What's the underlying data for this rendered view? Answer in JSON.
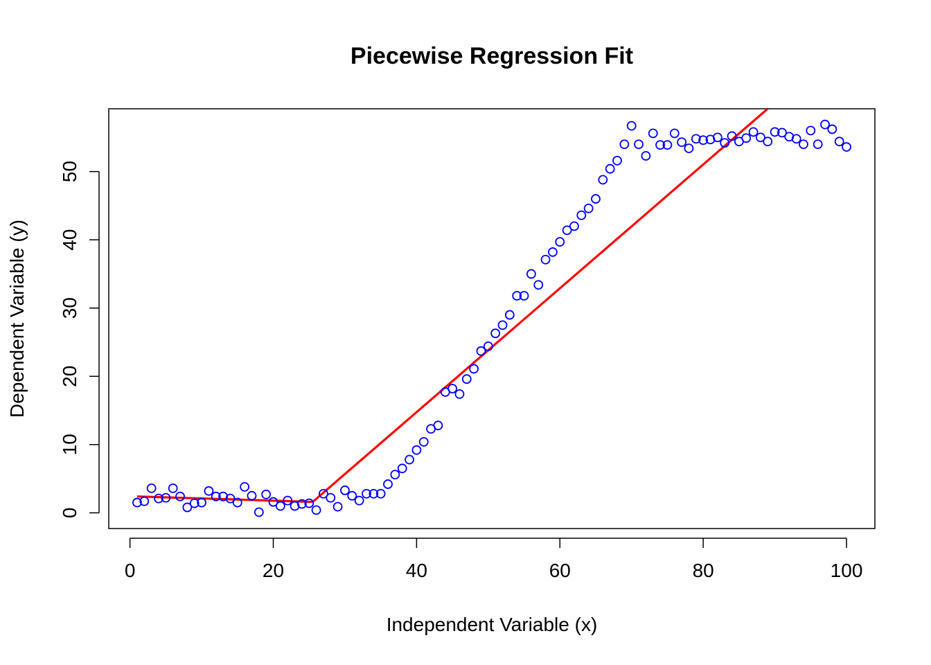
{
  "chart_data": {
    "type": "scatter",
    "title": "Piecewise Regression Fit",
    "xlabel": "Independent Variable (x)",
    "ylabel": "Dependent Variable (y)",
    "xlim": [
      -2.96,
      103.96
    ],
    "ylim": [
      -2.3,
      59.2
    ],
    "xticks": [
      0,
      20,
      40,
      60,
      80,
      100
    ],
    "yticks": [
      0,
      10,
      20,
      30,
      40,
      50
    ],
    "grid": false,
    "legend": "none",
    "colors": {
      "points": "#0000ff",
      "fit": "#ff0000",
      "axes": "#000000"
    },
    "series": [
      {
        "type": "scatter",
        "marker": "open-circle",
        "x": [
          1,
          2,
          3,
          4,
          5,
          6,
          7,
          8,
          9,
          10,
          11,
          12,
          13,
          14,
          15,
          16,
          17,
          18,
          19,
          20,
          21,
          22,
          23,
          24,
          25,
          26,
          27,
          28,
          29,
          30,
          31,
          32,
          33,
          34,
          35,
          36,
          37,
          38,
          39,
          40,
          41,
          42,
          43,
          44,
          45,
          46,
          47,
          48,
          49,
          50,
          51,
          52,
          53,
          54,
          55,
          56,
          57,
          58,
          59,
          60,
          61,
          62,
          63,
          64,
          65,
          66,
          67,
          68,
          69,
          70,
          71,
          72,
          73,
          74,
          75,
          76,
          77,
          78,
          79,
          80,
          81,
          82,
          83,
          84,
          85,
          86,
          87,
          88,
          89,
          90,
          91,
          92,
          93,
          94,
          95,
          96,
          97,
          98,
          99,
          100
        ],
        "y": [
          1.5,
          1.7,
          3.6,
          2.1,
          2.2,
          3.6,
          2.4,
          0.8,
          1.4,
          1.5,
          3.2,
          2.4,
          2.4,
          2.1,
          1.5,
          3.8,
          2.5,
          0.1,
          2.7,
          1.6,
          1.0,
          1.8,
          1.0,
          1.3,
          1.4,
          0.4,
          2.8,
          2.2,
          0.9,
          3.3,
          2.5,
          1.8,
          2.8,
          2.8,
          2.8,
          4.2,
          5.6,
          6.5,
          7.8,
          9.2,
          10.4,
          12.3,
          12.8,
          17.7,
          18.2,
          17.4,
          19.6,
          21.1,
          23.7,
          24.4,
          26.3,
          27.5,
          29.0,
          31.8,
          31.8,
          35.0,
          33.4,
          37.1,
          38.2,
          39.7,
          41.4,
          42.0,
          43.6,
          44.6,
          46.0,
          48.8,
          50.4,
          51.6,
          54.0,
          56.7,
          54.0,
          52.3,
          55.6,
          53.9,
          53.9,
          55.6,
          54.3,
          53.4,
          54.8,
          54.6,
          54.7,
          55.0,
          54.2,
          55.2,
          54.4,
          54.9,
          55.8,
          55.0,
          54.4,
          55.8,
          55.7,
          55.1,
          54.8,
          54.0,
          56.0,
          54.0,
          56.9,
          56.2,
          54.4,
          53.6
        ]
      },
      {
        "type": "line",
        "x": [
          1,
          25.5,
          89
        ],
        "y": [
          2.4,
          1.6,
          59.2
        ]
      }
    ]
  }
}
